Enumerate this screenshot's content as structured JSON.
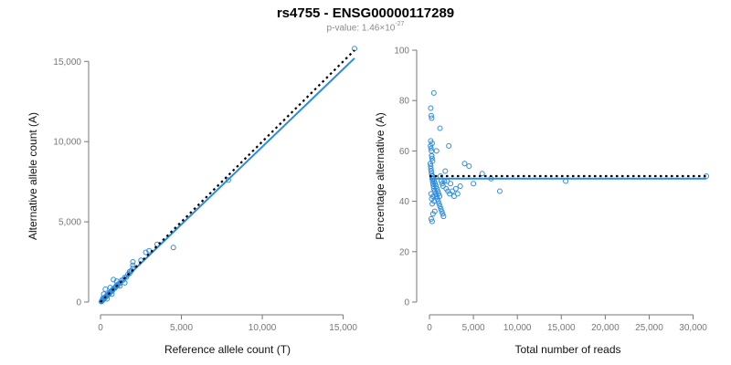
{
  "title": "rs4755 - ENSG00000117289",
  "subtitle": {
    "prefix": "p-value: 1.46×10",
    "exponent": "-27"
  },
  "colors": {
    "points": "#2d8be0",
    "fit": "#2d8be0",
    "reference": "#000000",
    "axis": "#777777"
  },
  "chart_data": [
    {
      "type": "scatter",
      "title": "",
      "xlabel": "Reference allele count (T)",
      "ylabel": "Alternative allele count (A)",
      "xlim": [
        0,
        15700
      ],
      "ylim": [
        0,
        15700
      ],
      "xticks": [
        0,
        5000,
        10000,
        15000
      ],
      "xtick_labels": [
        "0",
        "5,000",
        "10,000",
        "15,000"
      ],
      "yticks": [
        0,
        5000,
        10000,
        15000
      ],
      "ytick_labels": [
        "0",
        "5,000",
        "10,000",
        "15,000"
      ],
      "points": {
        "x": [
          50,
          80,
          100,
          120,
          150,
          180,
          200,
          220,
          250,
          280,
          300,
          320,
          350,
          380,
          400,
          420,
          450,
          480,
          500,
          550,
          600,
          650,
          700,
          750,
          800,
          850,
          900,
          950,
          1000,
          1050,
          1100,
          1200,
          1300,
          1400,
          1500,
          1600,
          1700,
          1800,
          1900,
          2000,
          2000,
          2500,
          2800,
          3000,
          3500,
          4500,
          7900,
          15700,
          300,
          600,
          800,
          1000,
          1500,
          1800,
          200,
          150,
          400,
          700,
          1200,
          2000
        ],
        "y": [
          30,
          60,
          90,
          110,
          140,
          170,
          190,
          230,
          240,
          270,
          310,
          330,
          340,
          390,
          420,
          400,
          460,
          470,
          520,
          540,
          620,
          640,
          720,
          740,
          830,
          860,
          880,
          970,
          1050,
          1020,
          1120,
          1180,
          1350,
          1370,
          1530,
          1560,
          1720,
          1800,
          1950,
          2300,
          2500,
          2600,
          3100,
          3200,
          3600,
          3400,
          7600,
          15800,
          800,
          900,
          1400,
          1300,
          1200,
          1900,
          500,
          250,
          200,
          500,
          1000,
          2100
        ]
      },
      "fit_line": {
        "x": [
          0,
          15700
        ],
        "y": [
          0,
          15200
        ]
      },
      "reference_line": {
        "x": [
          0,
          15700
        ],
        "y": [
          0,
          15700
        ]
      }
    },
    {
      "type": "scatter",
      "title": "",
      "xlabel": "Total number of reads",
      "ylabel": "Percentage alternative (A)",
      "xlim": [
        0,
        31500
      ],
      "ylim": [
        0,
        100
      ],
      "xticks": [
        0,
        5000,
        10000,
        15000,
        20000,
        25000,
        30000
      ],
      "xtick_labels": [
        "0",
        "5,000",
        "10,000",
        "15,000",
        "20,000",
        "25,000",
        "30,000"
      ],
      "yticks": [
        0,
        20,
        40,
        60,
        80,
        100
      ],
      "ytick_labels": [
        "0",
        "20",
        "40",
        "60",
        "80",
        "100"
      ],
      "points": {
        "x": [
          150,
          200,
          250,
          300,
          120,
          180,
          220,
          260,
          300,
          350,
          100,
          140,
          160,
          200,
          240,
          280,
          320,
          360,
          400,
          450,
          500,
          600,
          700,
          800,
          900,
          1000,
          1100,
          1200,
          1300,
          1400,
          1500,
          1600,
          1800,
          2000,
          2200,
          2400,
          2600,
          2800,
          3000,
          3200,
          3500,
          4000,
          4500,
          5000,
          6000,
          7000,
          8000,
          15500,
          31500,
          500,
          800,
          1200,
          200,
          300,
          400,
          600,
          150,
          250,
          350,
          450,
          550,
          650,
          750,
          850,
          950,
          1050,
          1150,
          1250,
          1350,
          1450,
          1550,
          1700,
          1900,
          2100,
          2300,
          250,
          180,
          320,
          420,
          520
        ],
        "y": [
          77,
          74,
          73,
          63,
          62,
          61,
          60,
          58,
          57,
          56,
          55,
          54,
          53,
          52,
          51,
          50,
          49,
          48,
          47,
          46,
          45,
          44,
          43,
          42,
          41,
          40,
          39,
          38,
          37,
          36,
          35,
          34,
          52,
          48,
          62,
          47,
          44,
          42,
          45,
          43,
          46,
          55,
          54,
          47,
          51,
          49,
          44,
          48,
          50,
          83,
          60,
          69,
          33,
          32,
          35,
          36,
          64,
          58,
          50,
          49,
          48,
          47,
          46,
          45,
          44,
          43,
          42,
          50,
          48,
          47,
          46,
          48,
          45,
          44,
          43,
          41,
          43,
          39,
          42,
          40
        ]
      },
      "fit_line": {
        "x": [
          0,
          31500
        ],
        "y": [
          49,
          49
        ]
      },
      "reference_line": {
        "x": [
          0,
          31500
        ],
        "y": [
          50,
          50
        ]
      }
    }
  ]
}
